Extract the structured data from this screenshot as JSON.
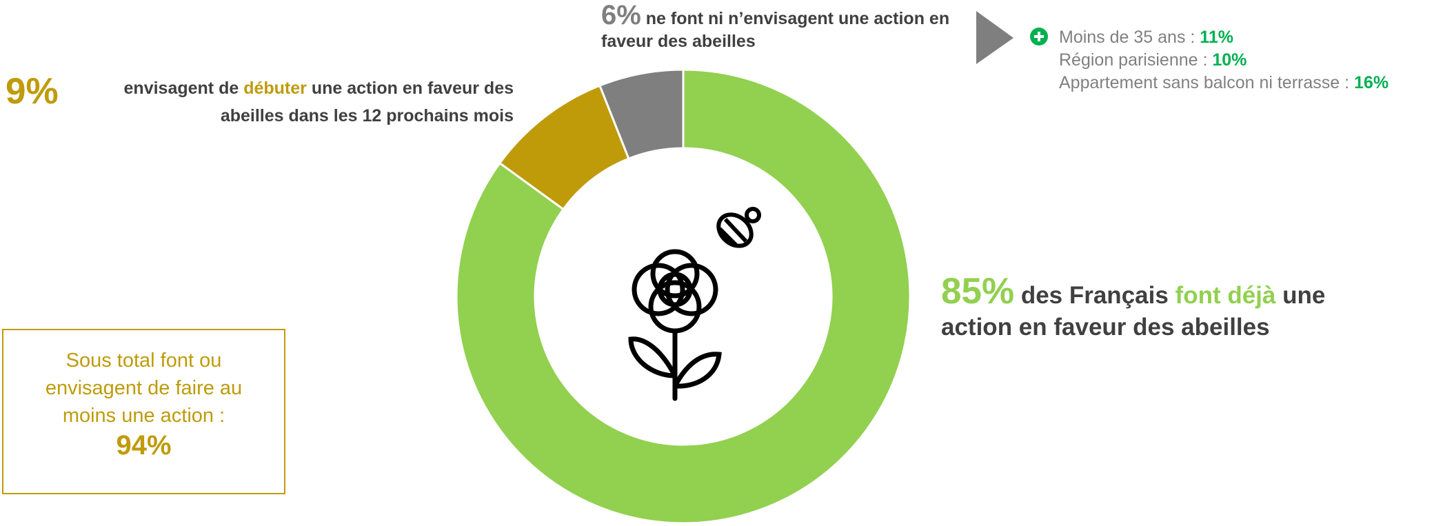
{
  "chart_data": {
    "type": "donut",
    "values": [
      85,
      9,
      6
    ],
    "value_labels": [
      "85%",
      "9%",
      "6%"
    ],
    "colors": [
      "#92d050",
      "#bf9b0a",
      "#7f7f7f"
    ],
    "labels": [
      {
        "before": "des Français",
        "highlight": "font déjà",
        "after": "une action en faveur des abeilles"
      },
      {
        "before": "envisagent de",
        "highlight": "débuter",
        "after": "une action en faveur des abeilles dans les 12 prochains mois"
      },
      {
        "before": "ne font ni n’envisagent une action en faveur des abeilles"
      }
    ],
    "subtotal": {
      "text": "Sous total font ou envisagent de faire au moins une action :",
      "value": "94%"
    },
    "breakdown": [
      {
        "label": "Moins de 35 ans :",
        "value": "11%"
      },
      {
        "label": "Région parisienne :",
        "value": "10%"
      },
      {
        "label": "Appartement sans balcon ni terrasse :",
        "value": "16%"
      }
    ]
  }
}
